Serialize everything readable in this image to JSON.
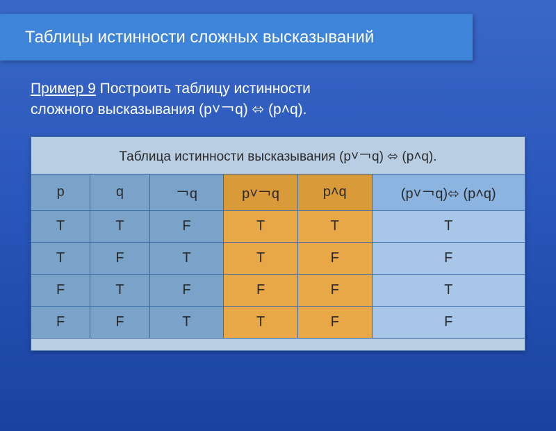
{
  "title": "Таблицы истинности сложных высказываний",
  "problem": {
    "label": "Пример 9",
    "text1": "  Построить таблицу истинности",
    "text2": "сложного высказывания    (p˅￢q) ⬄ (p˄q)."
  },
  "table": {
    "caption": "Таблица истинности высказывания (p˅￢q) ⬄  (p˄q).",
    "columns": [
      {
        "key": "p",
        "label": "p",
        "headerClass": "hdr-std",
        "cellClass": "cell-std",
        "widthClass": "c-p"
      },
      {
        "key": "q",
        "label": "q",
        "headerClass": "hdr-std",
        "cellClass": "cell-std",
        "widthClass": "c-q"
      },
      {
        "key": "nq",
        "label": "￢q",
        "headerClass": "hdr-std",
        "cellClass": "cell-std",
        "widthClass": "c-nq"
      },
      {
        "key": "pnq",
        "label": "p˅￢q",
        "headerClass": "hdr-org",
        "cellClass": "cell-org",
        "widthClass": "c-pnq"
      },
      {
        "key": "pq",
        "label": "p˄q",
        "headerClass": "hdr-org",
        "cellClass": "cell-org",
        "widthClass": "c-pq"
      },
      {
        "key": "res",
        "label": "(p˅￢q)⬄ (p˄q)",
        "headerClass": "hdr-blue",
        "cellClass": "cell-blue",
        "widthClass": "c-res"
      }
    ],
    "rows": [
      {
        "p": "T",
        "q": "T",
        "nq": "F",
        "pnq": "T",
        "pq": "T",
        "res": "T"
      },
      {
        "p": "T",
        "q": "F",
        "nq": "T",
        "pnq": "T",
        "pq": "F",
        "res": "F"
      },
      {
        "p": "F",
        "q": "T",
        "nq": "F",
        "pnq": "F",
        "pq": "F",
        "res": "T"
      },
      {
        "p": "F",
        "q": "F",
        "nq": "T",
        "pnq": "T",
        "pq": "F",
        "res": "F"
      }
    ]
  },
  "colors": {
    "bg_gradient_top": "#3a68c8",
    "bg_gradient_bottom": "#1a42a0",
    "title_bar": "#3e84d8",
    "caption_bg": "#b9cde3",
    "header_std": "#7ba2c9",
    "header_orange": "#d99a3a",
    "header_blue": "#8cb4e0",
    "cell_std": "#7ba2c9",
    "cell_orange": "#e8a848",
    "cell_blue": "#a7c6e8",
    "border": "#3a6aa5"
  }
}
